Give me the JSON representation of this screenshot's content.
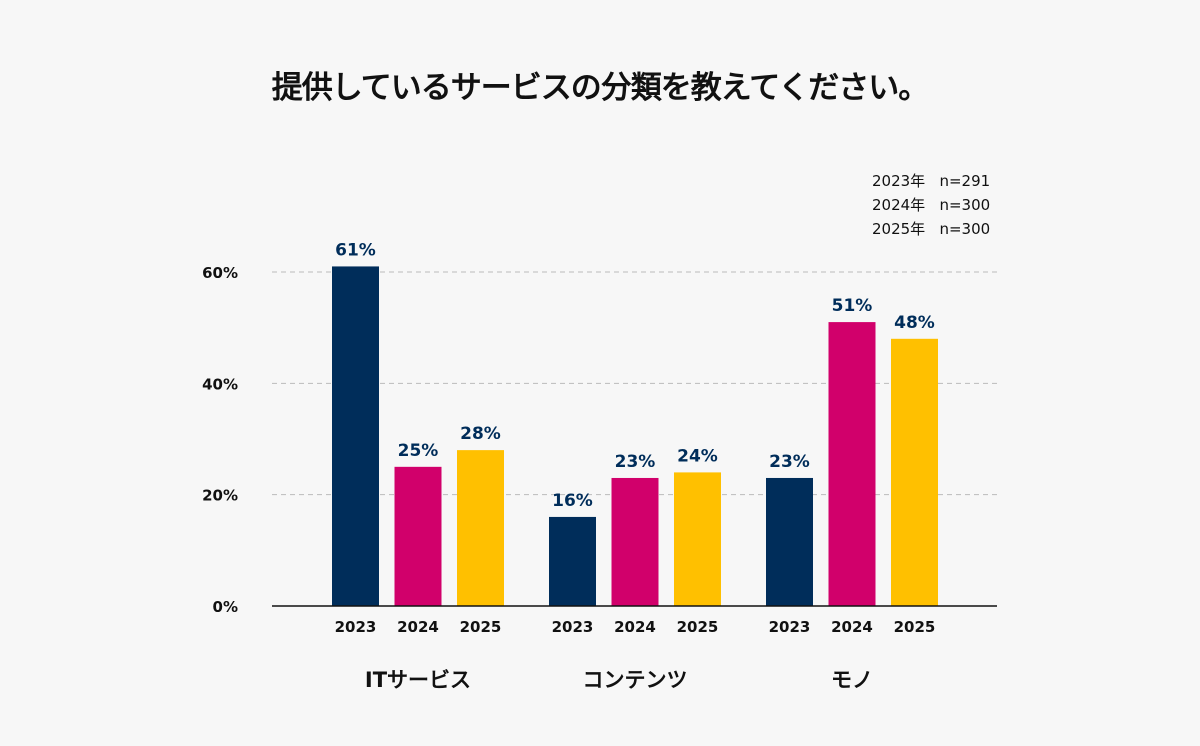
{
  "chart_data": {
    "type": "bar",
    "title": "提供しているサービスの分類を教えてください。",
    "groups": [
      "ITサービス",
      "コンテンツ",
      "モノ"
    ],
    "categories": [
      "2023",
      "2024",
      "2025"
    ],
    "series": [
      {
        "name": "2023",
        "color": "#002d5a",
        "values": [
          61,
          16,
          23
        ]
      },
      {
        "name": "2024",
        "color": "#d1006b",
        "values": [
          25,
          23,
          51
        ]
      },
      {
        "name": "2025",
        "color": "#ffc000",
        "values": [
          28,
          24,
          48
        ]
      }
    ],
    "data_labels": [
      [
        "61%",
        "25%",
        "28%"
      ],
      [
        "16%",
        "23%",
        "24%"
      ],
      [
        "23%",
        "51%",
        "48%"
      ]
    ],
    "yticks": [
      "0%",
      "20%",
      "40%",
      "60%"
    ],
    "ytick_values": [
      0,
      20,
      40,
      60
    ],
    "ylim": [
      0,
      60
    ],
    "grid": "dashed horizontal",
    "label_color": "#002d5a",
    "sample_notes": [
      "2023年   n=291",
      "2024年   n=300",
      "2025年   n=300"
    ],
    "legend_placement": "top-right"
  }
}
